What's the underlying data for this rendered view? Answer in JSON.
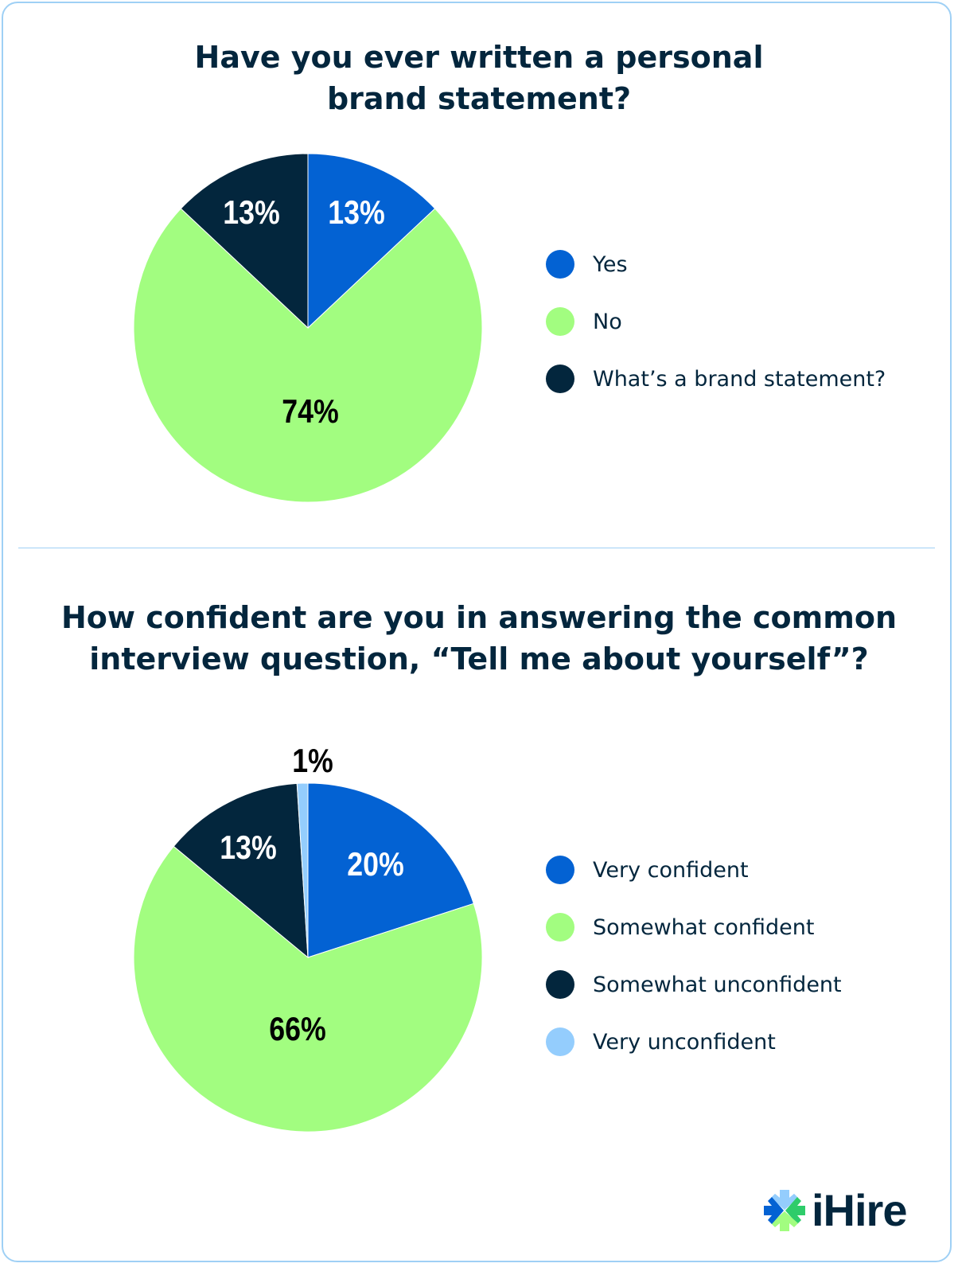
{
  "chart_data": [
    {
      "type": "pie",
      "title_lines": [
        "Have you ever written a personal",
        "brand statement?"
      ],
      "categories": [
        "Yes",
        "No",
        "What’s a brand statement?"
      ],
      "values": [
        13,
        74,
        13
      ],
      "labels": [
        "13%",
        "74%",
        "13%"
      ],
      "colors": [
        "#0362d3",
        "#a2fd80",
        "#03263d"
      ],
      "label_colors": [
        "#ffffff",
        "#000000",
        "#ffffff"
      ],
      "legend_placement": "right"
    },
    {
      "type": "pie",
      "title_lines": [
        "How confident are you in answering the common",
        "interview question, “Tell me about yourself”?"
      ],
      "categories": [
        "Very confident",
        "Somewhat confident",
        "Somewhat unconfident",
        "Very unconfident"
      ],
      "values": [
        20,
        66,
        13,
        1
      ],
      "labels": [
        "20%",
        "66%",
        "13%",
        "1%"
      ],
      "colors": [
        "#0362d3",
        "#a2fd80",
        "#03263d",
        "#94cdfd"
      ],
      "label_colors": [
        "#ffffff",
        "#000000",
        "#ffffff",
        "#000000"
      ],
      "legend_placement": "right"
    }
  ],
  "logo": {
    "text": "iHire",
    "colors": [
      "#0362d3",
      "#94cdfd",
      "#2ecc6a",
      "#a2fd80"
    ]
  }
}
